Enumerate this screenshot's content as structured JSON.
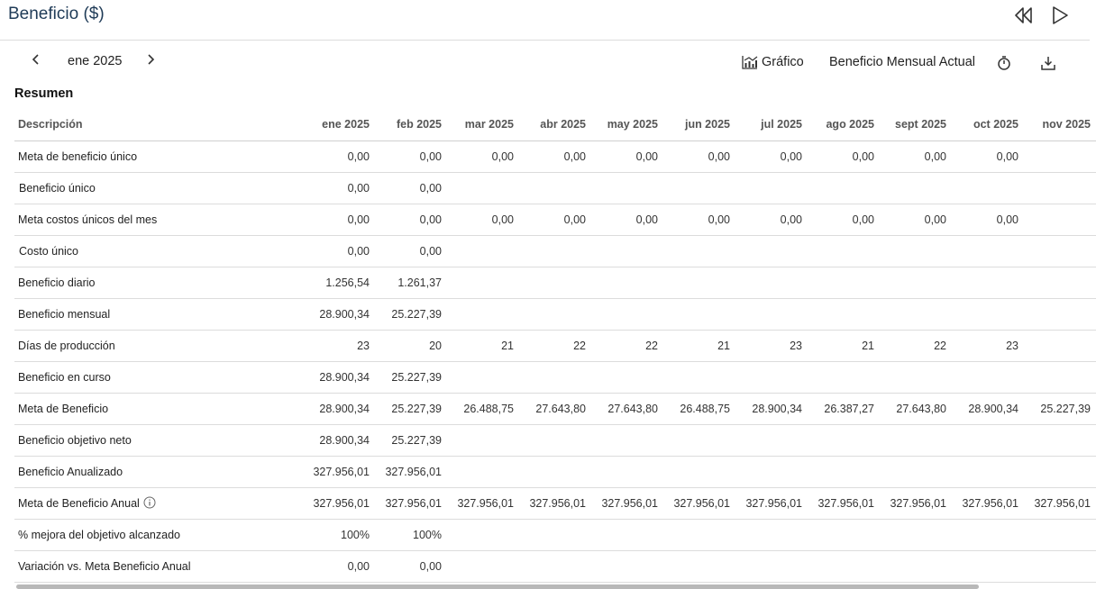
{
  "header": {
    "title": "Beneficio ($)"
  },
  "toolbar": {
    "period": "ene 2025",
    "chart_label": "Gráfico",
    "view_label": "Beneficio Mensual Actual"
  },
  "summary": {
    "title": "Resumen",
    "columns": [
      "Descripción",
      "ene 2025",
      "feb 2025",
      "mar 2025",
      "abr 2025",
      "may 2025",
      "jun 2025",
      "jul 2025",
      "ago 2025",
      "sept 2025",
      "oct 2025",
      "nov 2025"
    ],
    "rows": [
      {
        "label": "Meta de beneficio único",
        "values": [
          "0,00",
          "0,00",
          "0,00",
          "0,00",
          "0,00",
          "0,00",
          "0,00",
          "0,00",
          "0,00",
          "0,00",
          ""
        ]
      },
      {
        "label": "Beneficio único",
        "values": [
          "0,00",
          "0,00",
          "",
          "",
          "",
          "",
          "",
          "",
          "",
          "",
          ""
        ]
      },
      {
        "label": "Meta costos únicos del mes",
        "values": [
          "0,00",
          "0,00",
          "0,00",
          "0,00",
          "0,00",
          "0,00",
          "0,00",
          "0,00",
          "0,00",
          "0,00",
          ""
        ]
      },
      {
        "label": "Costo único",
        "values": [
          "0,00",
          "0,00",
          "",
          "",
          "",
          "",
          "",
          "",
          "",
          "",
          ""
        ]
      },
      {
        "label": "Beneficio diario",
        "values": [
          "1.256,54",
          "1.261,37",
          "",
          "",
          "",
          "",
          "",
          "",
          "",
          "",
          ""
        ]
      },
      {
        "label": "Beneficio mensual",
        "values": [
          "28.900,34",
          "25.227,39",
          "",
          "",
          "",
          "",
          "",
          "",
          "",
          "",
          ""
        ]
      },
      {
        "label": "Días de producción",
        "values": [
          "23",
          "20",
          "21",
          "22",
          "22",
          "21",
          "23",
          "21",
          "22",
          "23",
          ""
        ]
      },
      {
        "label": "Beneficio en curso",
        "values": [
          "28.900,34",
          "25.227,39",
          "",
          "",
          "",
          "",
          "",
          "",
          "",
          "",
          ""
        ]
      },
      {
        "label": "Meta de Beneficio",
        "values": [
          "28.900,34",
          "25.227,39",
          "26.488,75",
          "27.643,80",
          "27.643,80",
          "26.488,75",
          "28.900,34",
          "26.387,27",
          "27.643,80",
          "28.900,34",
          "25.227,39"
        ]
      },
      {
        "label": "Beneficio objetivo neto",
        "values": [
          "28.900,34",
          "25.227,39",
          "",
          "",
          "",
          "",
          "",
          "",
          "",
          "",
          ""
        ]
      },
      {
        "label": "Beneficio Anualizado",
        "values": [
          "327.956,01",
          "327.956,01",
          "",
          "",
          "",
          "",
          "",
          "",
          "",
          "",
          ""
        ]
      },
      {
        "label": "Meta de Beneficio Anual",
        "values": [
          "327.956,01",
          "327.956,01",
          "327.956,01",
          "327.956,01",
          "327.956,01",
          "327.956,01",
          "327.956,01",
          "327.956,01",
          "327.956,01",
          "327.956,01",
          "327.956,01"
        ]
      },
      {
        "label": "% mejora del objetivo alcanzado",
        "values": [
          "100%",
          "100%",
          "",
          "",
          "",
          "",
          "",
          "",
          "",
          "",
          ""
        ]
      },
      {
        "label": "Variación vs. Meta Beneficio Anual",
        "values": [
          "0,00",
          "0,00",
          "",
          "",
          "",
          "",
          "",
          "",
          "",
          "",
          ""
        ]
      }
    ]
  },
  "icons": {
    "rewind": "rewind-icon",
    "play": "play-icon",
    "prev": "chevron-left-icon",
    "next": "chevron-right-icon",
    "chart": "chart-icon",
    "timer": "stopwatch-icon",
    "download": "download-icon",
    "info": "info-icon"
  },
  "colors": {
    "title": "#1f3b57",
    "border": "#dcdcdc"
  }
}
